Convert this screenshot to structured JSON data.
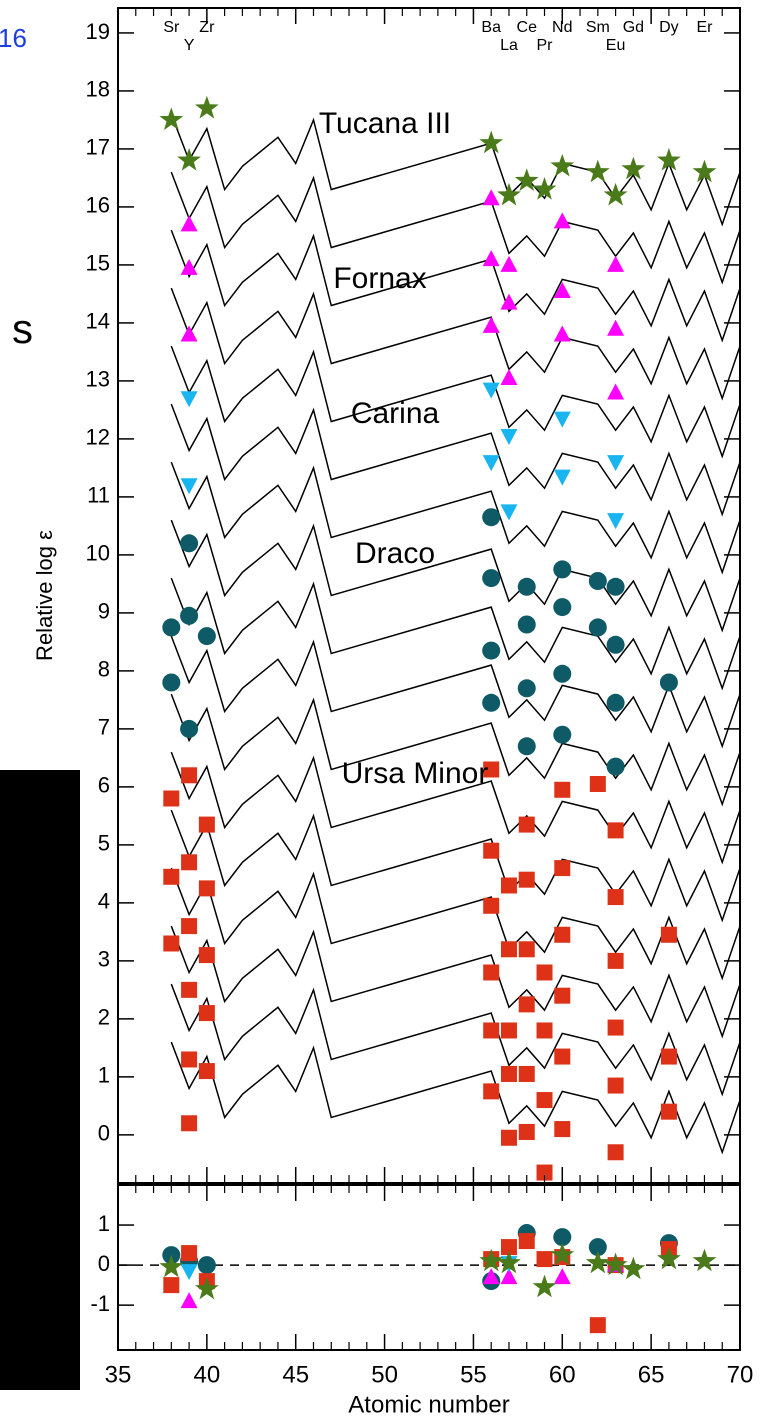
{
  "slide_fragments": [
    "16",
    "s"
  ],
  "chart_data": [
    {
      "type": "scatter",
      "ylabel": "Relative log ε",
      "xlim": [
        35,
        70
      ],
      "ylim": [
        -0.83,
        19.43
      ],
      "xticks": [
        35,
        40,
        45,
        50,
        55,
        60,
        65,
        70
      ],
      "xminorticks": [
        36,
        37,
        38,
        39,
        41,
        42,
        43,
        44,
        46,
        47,
        48,
        49,
        51,
        52,
        53,
        54,
        56,
        57,
        58,
        59,
        61,
        62,
        63,
        64,
        66,
        67,
        68,
        69
      ],
      "yticks": [
        0,
        1,
        2,
        3,
        4,
        5,
        6,
        7,
        8,
        9,
        10,
        11,
        12,
        13,
        14,
        15,
        16,
        17,
        18,
        19
      ],
      "element_labels_top": {
        "x": [
          38,
          40,
          56,
          58,
          60,
          62,
          64,
          66,
          68
        ],
        "labels": [
          "Sr",
          "Zr",
          "Ba",
          "Ce",
          "Nd",
          "Sm",
          "Gd",
          "Dy",
          "Er"
        ]
      },
      "element_labels_bottom": {
        "x": [
          39,
          57,
          59,
          63
        ],
        "labels": [
          "Y",
          "La",
          "Pr",
          "Eu"
        ]
      },
      "lines": {
        "color": "#000000",
        "x": [
          38,
          39,
          40,
          41,
          42,
          44,
          45,
          46,
          47,
          56,
          57,
          58,
          59,
          60,
          62,
          63,
          64,
          65,
          66,
          67,
          68,
          69,
          70
        ],
        "values": [
          [
            17.6,
            16.8,
            17.35,
            16.3,
            16.7,
            17.2,
            16.75,
            17.5,
            16.3,
            17.1,
            16.2,
            16.5,
            16.15,
            16.75,
            16.6,
            16.15,
            16.55,
            15.95,
            16.75,
            15.95,
            16.55,
            15.7,
            16.6
          ],
          [
            16.6,
            15.8,
            16.35,
            15.3,
            15.7,
            16.2,
            15.75,
            16.5,
            15.3,
            16.1,
            15.2,
            15.5,
            15.15,
            15.75,
            15.6,
            15.15,
            15.55,
            14.95,
            15.75,
            14.95,
            15.55,
            14.7,
            15.6
          ],
          [
            15.6,
            14.8,
            15.35,
            14.3,
            14.7,
            15.2,
            14.75,
            15.5,
            14.3,
            15.1,
            14.2,
            14.5,
            14.15,
            14.75,
            14.6,
            14.15,
            14.55,
            13.95,
            14.75,
            13.95,
            14.55,
            13.7,
            14.6
          ],
          [
            14.6,
            13.8,
            14.35,
            13.3,
            13.7,
            14.2,
            13.75,
            14.5,
            13.3,
            14.1,
            13.2,
            13.5,
            13.15,
            13.75,
            13.6,
            13.15,
            13.55,
            12.95,
            13.75,
            12.95,
            13.55,
            12.7,
            13.6
          ],
          [
            13.6,
            12.8,
            13.35,
            12.3,
            12.7,
            13.2,
            12.75,
            13.5,
            12.3,
            13.1,
            12.2,
            12.5,
            12.15,
            12.75,
            12.6,
            12.15,
            12.55,
            11.95,
            12.75,
            11.95,
            12.55,
            11.7,
            12.6
          ],
          [
            12.6,
            11.8,
            12.35,
            11.3,
            11.7,
            12.2,
            11.75,
            12.5,
            11.3,
            12.1,
            11.2,
            11.5,
            11.15,
            11.75,
            11.6,
            11.15,
            11.55,
            10.95,
            11.75,
            10.95,
            11.55,
            10.7,
            11.6
          ],
          [
            11.6,
            10.8,
            11.35,
            10.3,
            10.7,
            11.2,
            10.75,
            11.5,
            10.3,
            11.1,
            10.2,
            10.5,
            10.15,
            10.75,
            10.6,
            10.15,
            10.55,
            9.95,
            10.75,
            9.95,
            10.55,
            9.7,
            10.6
          ],
          [
            10.6,
            9.8,
            10.35,
            9.3,
            9.7,
            10.2,
            9.75,
            10.5,
            9.3,
            10.1,
            9.2,
            9.5,
            9.15,
            9.75,
            9.6,
            9.15,
            9.55,
            8.95,
            9.75,
            8.95,
            9.55,
            8.7,
            9.6
          ],
          [
            9.6,
            8.8,
            9.35,
            8.3,
            8.7,
            9.2,
            8.75,
            9.5,
            8.3,
            9.1,
            8.2,
            8.5,
            8.15,
            8.75,
            8.6,
            8.15,
            8.55,
            7.95,
            8.75,
            7.95,
            8.55,
            7.7,
            8.6
          ],
          [
            8.6,
            7.8,
            8.35,
            7.3,
            7.7,
            8.2,
            7.75,
            8.5,
            7.3,
            8.1,
            7.2,
            7.5,
            7.15,
            7.75,
            7.6,
            7.15,
            7.55,
            6.95,
            7.75,
            6.95,
            7.55,
            6.7,
            7.6
          ],
          [
            7.6,
            6.8,
            7.35,
            6.3,
            6.7,
            7.2,
            6.75,
            7.5,
            6.3,
            7.1,
            6.2,
            6.5,
            6.15,
            6.75,
            6.6,
            6.15,
            6.55,
            5.95,
            6.75,
            5.95,
            6.55,
            5.7,
            6.6
          ],
          [
            6.6,
            5.8,
            6.35,
            5.3,
            5.7,
            6.2,
            5.75,
            6.5,
            5.3,
            6.1,
            5.2,
            5.5,
            5.15,
            5.75,
            5.6,
            5.15,
            5.55,
            4.95,
            5.75,
            4.95,
            5.55,
            4.7,
            5.6
          ],
          [
            5.6,
            4.8,
            5.35,
            4.3,
            4.7,
            5.2,
            4.75,
            5.5,
            4.3,
            5.1,
            4.2,
            4.5,
            4.15,
            4.75,
            4.6,
            4.15,
            4.55,
            3.95,
            4.75,
            3.95,
            4.55,
            3.7,
            4.6
          ],
          [
            4.6,
            3.8,
            4.35,
            3.3,
            3.7,
            4.2,
            3.75,
            4.5,
            3.3,
            4.1,
            3.2,
            3.5,
            3.15,
            3.75,
            3.6,
            3.15,
            3.55,
            2.95,
            3.75,
            2.95,
            3.55,
            2.7,
            3.6
          ],
          [
            3.6,
            2.8,
            3.35,
            2.3,
            2.7,
            3.2,
            2.75,
            3.5,
            2.3,
            3.1,
            2.2,
            2.5,
            2.15,
            2.75,
            2.6,
            2.15,
            2.55,
            1.95,
            2.75,
            1.95,
            2.55,
            1.7,
            2.6
          ],
          [
            2.6,
            1.8,
            2.35,
            1.3,
            1.7,
            2.2,
            1.75,
            2.5,
            1.3,
            2.1,
            1.2,
            1.5,
            1.15,
            1.75,
            1.6,
            1.15,
            1.55,
            0.95,
            1.75,
            0.95,
            1.55,
            0.7,
            1.6
          ],
          [
            1.6,
            0.8,
            1.35,
            0.3,
            0.7,
            1.2,
            0.75,
            1.5,
            0.3,
            1.1,
            0.2,
            0.5,
            0.15,
            0.75,
            0.6,
            0.15,
            0.55,
            -0.05,
            0.75,
            -0.05,
            0.55,
            -0.3,
            0.6
          ]
        ]
      },
      "series": [
        {
          "name": "Tucana III",
          "color": "#4a7a1a",
          "marker": "star",
          "x": [
            38,
            39,
            40,
            56,
            57,
            58,
            59,
            60,
            62,
            63,
            64,
            66,
            68
          ],
          "values": [
            17.5,
            16.8,
            17.7,
            17.1,
            16.2,
            16.45,
            16.3,
            16.7,
            16.6,
            16.2,
            16.65,
            16.8,
            16.6
          ]
        },
        {
          "name": "Fornax",
          "color": "#ff00ff",
          "marker": "triangle-up",
          "x": [
            39,
            39,
            39,
            56,
            56,
            56,
            57,
            57,
            57,
            60,
            60,
            60,
            63,
            63,
            63
          ],
          "values": [
            15.7,
            14.95,
            13.8,
            16.15,
            15.1,
            13.95,
            15.0,
            14.35,
            13.05,
            15.75,
            14.55,
            13.8,
            15.0,
            13.9,
            12.8
          ]
        },
        {
          "name": "Carina",
          "color": "#19b5f0",
          "marker": "triangle-down",
          "x": [
            39,
            39,
            56,
            56,
            57,
            57,
            60,
            60,
            63,
            63
          ],
          "values": [
            12.7,
            11.2,
            12.85,
            11.6,
            12.05,
            10.75,
            12.35,
            11.35,
            11.6,
            10.6
          ]
        },
        {
          "name": "Draco",
          "color": "#0e5a66",
          "marker": "circle",
          "x": [
            38,
            38,
            39,
            39,
            39,
            40,
            56,
            56,
            56,
            56,
            58,
            58,
            58,
            58,
            60,
            60,
            60,
            60,
            62,
            62,
            63,
            63,
            63,
            63,
            66
          ],
          "values": [
            8.75,
            7.8,
            10.2,
            8.95,
            7.0,
            8.6,
            10.65,
            9.6,
            8.35,
            7.45,
            9.45,
            8.8,
            7.7,
            6.7,
            9.75,
            9.1,
            7.95,
            6.9,
            9.55,
            8.75,
            9.45,
            8.45,
            7.45,
            6.35,
            7.8
          ]
        },
        {
          "name": "Ursa Minor",
          "color": "#dd3217",
          "marker": "square",
          "x": [
            38,
            38,
            38,
            39,
            39,
            39,
            39,
            39,
            39,
            40,
            40,
            40,
            40,
            40,
            56,
            56,
            56,
            56,
            56,
            56,
            57,
            57,
            57,
            57,
            57,
            58,
            58,
            58,
            58,
            58,
            58,
            59,
            59,
            59,
            59,
            60,
            60,
            60,
            60,
            60,
            60,
            62,
            63,
            63,
            63,
            63,
            63,
            63,
            66,
            66,
            66
          ],
          "values": [
            5.8,
            4.45,
            3.3,
            6.2,
            4.7,
            3.6,
            2.5,
            1.3,
            0.2,
            5.35,
            4.25,
            3.1,
            2.1,
            1.1,
            6.3,
            4.9,
            3.95,
            2.8,
            1.8,
            0.75,
            4.3,
            3.2,
            1.8,
            1.05,
            -0.05,
            5.35,
            4.4,
            3.2,
            2.25,
            1.05,
            0.05,
            2.8,
            1.8,
            0.6,
            -0.65,
            5.95,
            4.6,
            3.45,
            2.4,
            1.35,
            0.1,
            6.05,
            5.25,
            4.1,
            3.0,
            1.85,
            0.85,
            -0.3,
            3.45,
            1.35,
            0.4
          ]
        }
      ]
    },
    {
      "type": "scatter",
      "xlabel": "Atomic number",
      "xlim": [
        35,
        70
      ],
      "ylim": [
        -2.12,
        2.0
      ],
      "xticks": [
        35,
        40,
        45,
        50,
        55,
        60,
        65,
        70
      ],
      "xminorticks": [
        36,
        37,
        38,
        39,
        41,
        42,
        43,
        44,
        46,
        47,
        48,
        49,
        51,
        52,
        53,
        54,
        56,
        57,
        58,
        59,
        61,
        62,
        63,
        64,
        66,
        67,
        68,
        69
      ],
      "yticks": [
        -1,
        0,
        1
      ],
      "hline": 0,
      "series": [
        {
          "color": "#0e5a66",
          "marker": "circle",
          "x": [
            38,
            39,
            40,
            56,
            58,
            60,
            62,
            66
          ],
          "values": [
            0.25,
            0.1,
            0.0,
            -0.4,
            0.8,
            0.7,
            0.45,
            0.55
          ]
        },
        {
          "color": "#dd3217",
          "marker": "square",
          "x": [
            38,
            39,
            40,
            56,
            57,
            58,
            59,
            60,
            62,
            63,
            66
          ],
          "values": [
            -0.5,
            0.3,
            -0.4,
            0.15,
            0.45,
            0.6,
            0.15,
            0.2,
            -1.5,
            0.0,
            0.4
          ]
        },
        {
          "color": "#ff00ff",
          "marker": "triangle-up",
          "x": [
            39,
            56,
            57,
            60,
            63
          ],
          "values": [
            -0.9,
            -0.3,
            -0.3,
            -0.3,
            0.0
          ]
        },
        {
          "color": "#19b5f0",
          "marker": "triangle-down",
          "x": [
            39,
            57
          ],
          "values": [
            -0.15,
            0.05
          ]
        },
        {
          "color": "#4a7a1a",
          "marker": "star",
          "x": [
            38,
            40,
            56,
            57,
            59,
            60,
            62,
            63,
            64,
            66,
            68
          ],
          "values": [
            -0.05,
            -0.6,
            0.1,
            0.05,
            -0.55,
            0.25,
            0.05,
            0,
            -0.1,
            0.15,
            0.1
          ]
        }
      ]
    }
  ]
}
